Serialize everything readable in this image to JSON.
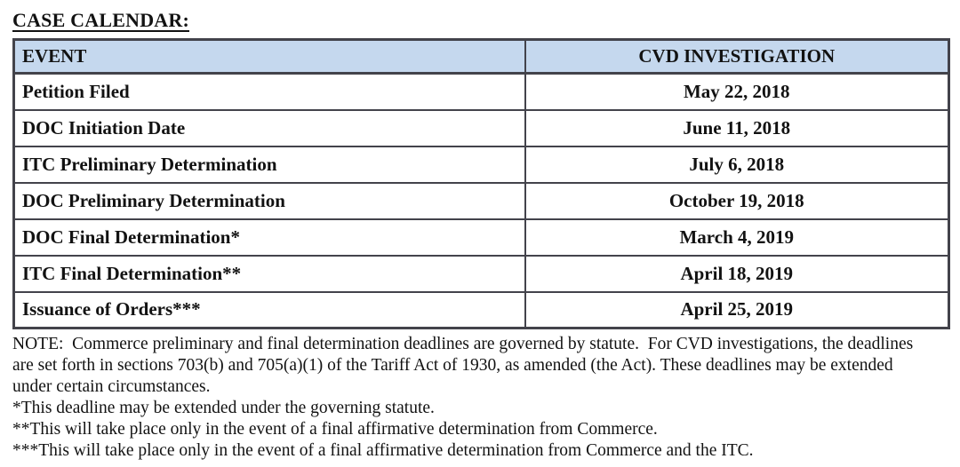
{
  "page": {
    "title": "CASE CALENDAR:"
  },
  "table": {
    "headers": {
      "event": "EVENT",
      "investigation": "CVD INVESTIGATION"
    },
    "rows": [
      {
        "event": "Petition Filed",
        "date": "May 22, 2018"
      },
      {
        "event": "DOC Initiation Date",
        "date": "June 11, 2018"
      },
      {
        "event": "ITC Preliminary Determination",
        "date": "July 6, 2018"
      },
      {
        "event": "DOC Preliminary Determination",
        "date": "October 19, 2018"
      },
      {
        "event": "DOC Final Determination*",
        "date": "March 4, 2019"
      },
      {
        "event": "ITC Final Determination**",
        "date": "April 18, 2019"
      },
      {
        "event": "Issuance of Orders***",
        "date": "April 25, 2019"
      }
    ]
  },
  "notes": {
    "note_paragraph": "NOTE:  Commerce preliminary and final determination deadlines are governed by statute.  For CVD investigations, the deadlines are set forth in sections 703(b) and 705(a)(1) of the Tariff Act of 1930, as amended (the Act). These deadlines may be extended under certain circumstances.",
    "footnotes": [
      "*This deadline may be extended under the governing statute.",
      "**This will take place only in the event of a final affirmative determination from Commerce.",
      "***This will take place only in the event of a final affirmative determination from Commerce and the ITC."
    ]
  },
  "colors": {
    "header_fill": "#c5d8ee",
    "border": "#43434b",
    "text": "#121212"
  }
}
